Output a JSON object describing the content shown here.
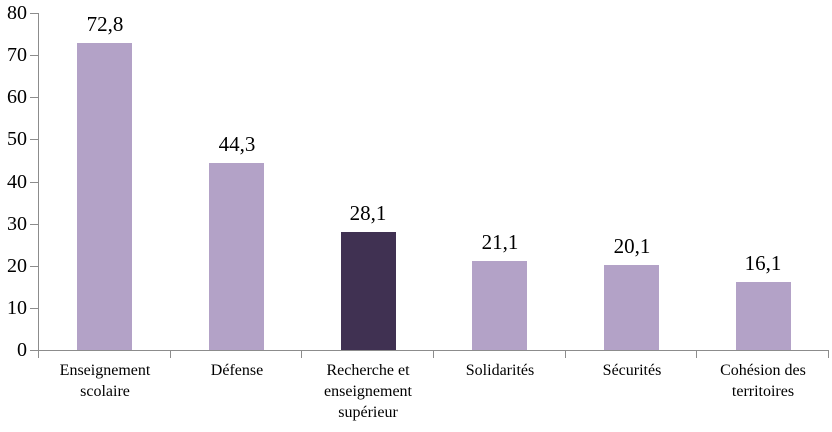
{
  "chart_data": {
    "type": "bar",
    "title": "",
    "xlabel": "",
    "ylabel": "",
    "categories": [
      "Enseignement scolaire",
      "Défense",
      "Recherche et enseignement supérieur",
      "Solidarités",
      "Sécurités",
      "Cohésion des territoires"
    ],
    "values": [
      72.8,
      44.3,
      28.1,
      21.1,
      20.1,
      16.1
    ],
    "value_labels": [
      "72,8",
      "44,3",
      "28,1",
      "21,1",
      "20,1",
      "16,1"
    ],
    "highlight_index": 2,
    "ylim": [
      0,
      80
    ],
    "yticks": [
      0,
      10,
      20,
      30,
      40,
      50,
      60,
      70,
      80
    ],
    "ytick_labels": [
      "0",
      "10",
      "20",
      "30",
      "40",
      "50",
      "60",
      "70",
      "80"
    ],
    "grid": false,
    "legend": null,
    "colors": {
      "bar": "#b3a2c7",
      "highlight_bar": "#403152",
      "axis": "#8c8c8c",
      "text": "#000000",
      "background": "#ffffff"
    }
  }
}
